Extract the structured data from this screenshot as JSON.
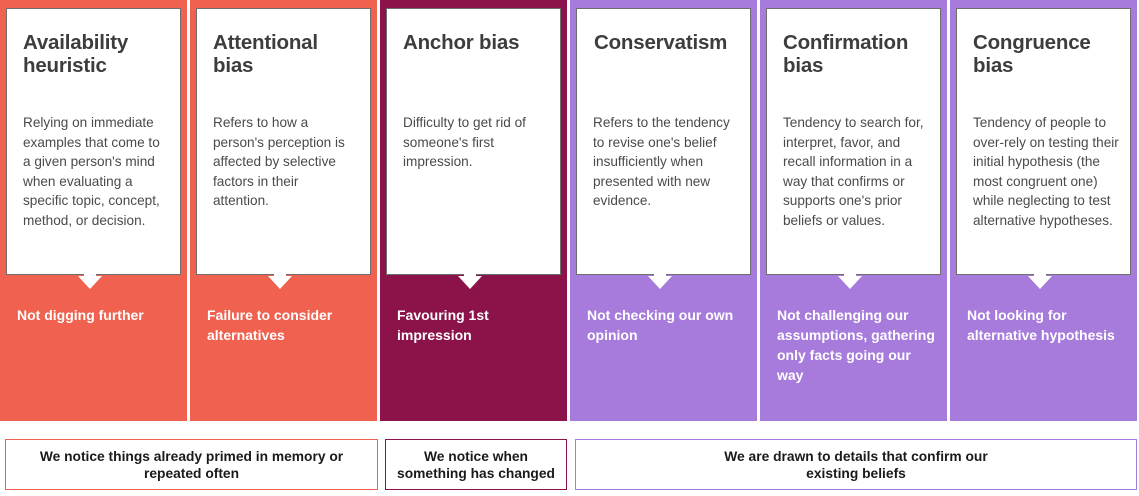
{
  "colors": {
    "coral": "#f0624f",
    "maroon": "#8c124a",
    "purple": "#a67bdc"
  },
  "columns": [
    {
      "title": "Availability heuristic",
      "description": "Relying on immediate examples that come to a given person's mind when evaluating a specific topic, concept, method, or decision.",
      "outcome": "Not digging further",
      "color": "coral"
    },
    {
      "title": "Attentional bias",
      "description": "Refers to how a person's perception is affected by selective factors in their attention.",
      "outcome": "Failure to consider alternatives",
      "color": "coral"
    },
    {
      "title": "Anchor bias",
      "description": "Difficulty to get rid of someone's first impression.",
      "outcome": "Favouring 1st impression",
      "color": "maroon"
    },
    {
      "title": "Conservatism",
      "description": "Refers to the tendency to revise one's belief insufficiently when presented with new evidence.",
      "outcome": "Not checking our own opinion",
      "color": "purple"
    },
    {
      "title": "Confirmation bias",
      "description": "Tendency to search for, interpret, favor, and recall information in a way that confirms or supports one's prior beliefs or values.",
      "outcome": "Not challenging our assumptions, gathering only facts going our way",
      "color": "purple"
    },
    {
      "title": "Congruence bias",
      "description": "Tendency of people to over-rely on testing their initial hypothesis (the most congruent one) while neglecting to test alternative hypotheses.",
      "outcome": "Not looking for alternative hypothesis",
      "color": "purple"
    }
  ],
  "groups": [
    {
      "text": "We notice things already primed in memory or repeated often",
      "color": "coral"
    },
    {
      "text": "We notice when something has changed",
      "color": "maroon"
    },
    {
      "text": "We are drawn to details that confirm our existing beliefs",
      "color": "purple"
    }
  ]
}
